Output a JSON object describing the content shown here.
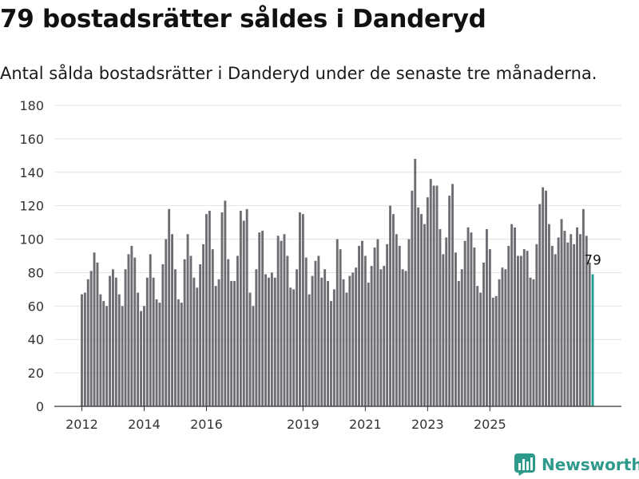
{
  "header": {
    "title": "79 bostadsrätter såldes i Danderyd",
    "subtitle": "Antal sålda bostadsrätter i Danderyd under de senaste tre månaderna."
  },
  "brand": {
    "name": "Newsworthy",
    "logo_icon": "bar-chart-logo-icon",
    "color": "#2e9a8c"
  },
  "colors": {
    "bar": "#6d6d73",
    "highlight": "#25a192",
    "grid": "#e2e2e2",
    "axis": "#333333"
  },
  "chart_data": {
    "type": "bar",
    "title": "79 bostadsrätter såldes i Danderyd",
    "subtitle": "Antal sålda bostadsrätter i Danderyd under de senaste tre månaderna.",
    "xlabel": "",
    "ylabel": "",
    "ylim": [
      0,
      180
    ],
    "yticks": [
      0,
      20,
      40,
      60,
      80,
      100,
      120,
      140,
      160,
      180
    ],
    "grid": true,
    "legend": "none",
    "xtick_labels": [
      {
        "label": "2012",
        "index": 0
      },
      {
        "label": "2014",
        "index": 20
      },
      {
        "label": "2016",
        "index": 40
      },
      {
        "label": "2019",
        "index": 71
      },
      {
        "label": "2021",
        "index": 91
      },
      {
        "label": "2023",
        "index": 111
      },
      {
        "label": "2025",
        "index": 131
      }
    ],
    "values": [
      67,
      68,
      76,
      81,
      92,
      86,
      67,
      63,
      60,
      78,
      82,
      77,
      67,
      60,
      82,
      91,
      96,
      89,
      68,
      57,
      60,
      77,
      91,
      77,
      64,
      62,
      85,
      100,
      118,
      103,
      82,
      64,
      62,
      88,
      103,
      90,
      77,
      71,
      85,
      97,
      115,
      117,
      94,
      72,
      76,
      116,
      123,
      88,
      75,
      75,
      90,
      117,
      111,
      118,
      68,
      60,
      82,
      104,
      105,
      79,
      77,
      80,
      77,
      102,
      99,
      103,
      90,
      71,
      70,
      82,
      116,
      115,
      89,
      67,
      78,
      87,
      90,
      77,
      82,
      75,
      63,
      70,
      100,
      94,
      76,
      68,
      78,
      80,
      83,
      96,
      99,
      90,
      74,
      84,
      95,
      100,
      82,
      84,
      97,
      120,
      115,
      103,
      96,
      82,
      81,
      100,
      129,
      148,
      119,
      115,
      109,
      125,
      136,
      132,
      132,
      106,
      91,
      101,
      126,
      133,
      92,
      75,
      82,
      99,
      107,
      104,
      95,
      72,
      68,
      86,
      106,
      94,
      65,
      66,
      76,
      83,
      82,
      96,
      109,
      107,
      90,
      90,
      94,
      93,
      77,
      76,
      97,
      121,
      131,
      129,
      109,
      96,
      91,
      101,
      112,
      105,
      98,
      103,
      97,
      107,
      103,
      118,
      102,
      86,
      79
    ],
    "annotation": {
      "index": 164,
      "label": "79"
    }
  }
}
